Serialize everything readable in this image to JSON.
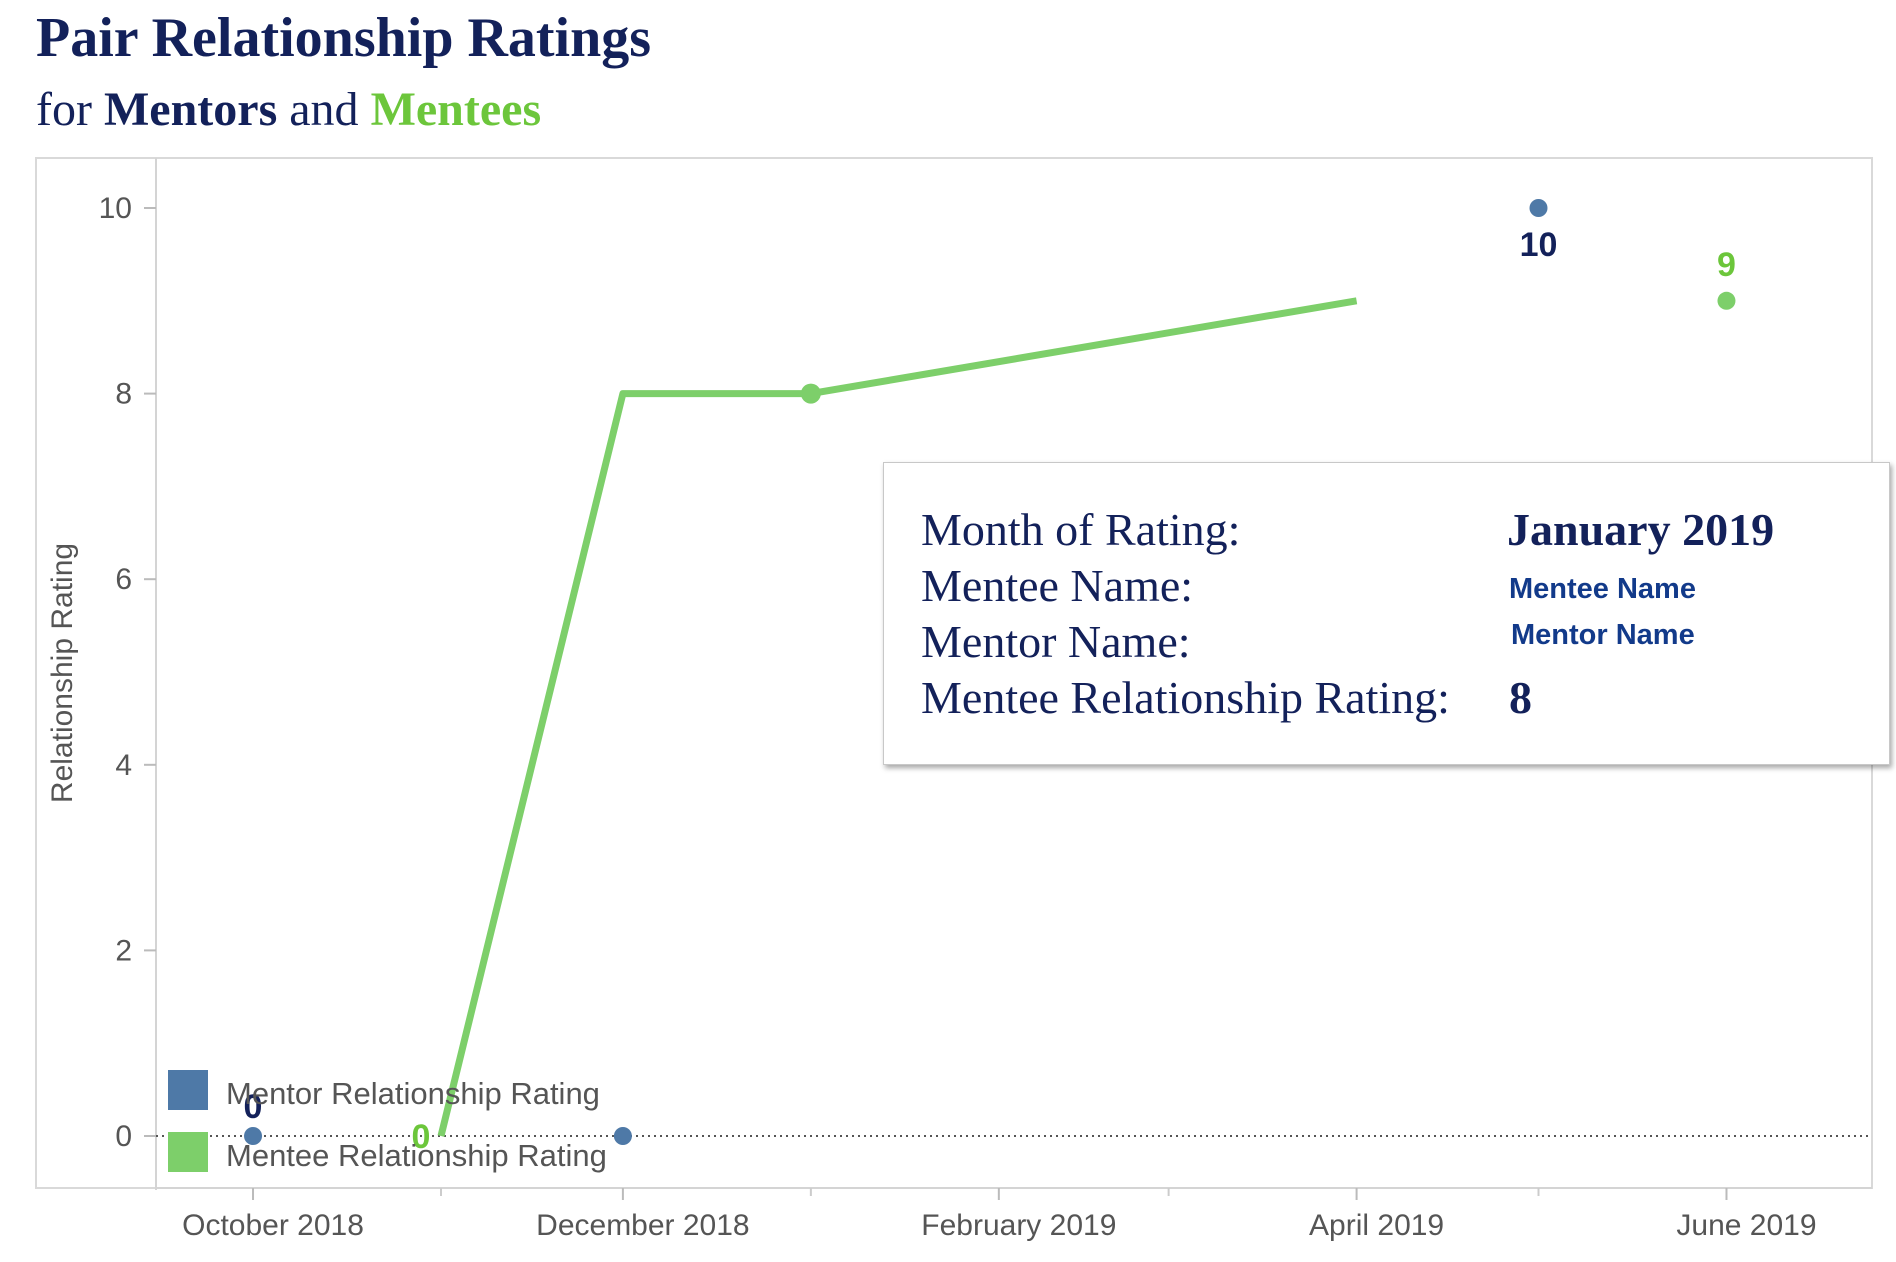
{
  "header": {
    "title": "Pair Relationship Ratings",
    "subtitle_for": "for",
    "subtitle_mentors": "Mentors",
    "subtitle_and": "and",
    "subtitle_mentees": "Mentees"
  },
  "colors": {
    "mentor": "#4e79a7",
    "mentor_label": "#13215a",
    "mentee": "#6cc63b",
    "mentee_line": "#7dcf6a",
    "title": "#13215a"
  },
  "chart_data": {
    "type": "line",
    "ylabel": "Relationship Rating",
    "xlabel": "",
    "ylim": [
      0,
      10
    ],
    "yticks": [
      0,
      2,
      4,
      6,
      8,
      10
    ],
    "xlim": [
      "2018-09-15",
      "2019-06-25"
    ],
    "xticks": [
      {
        "date": "2018-10-01",
        "label": "October 2018"
      },
      {
        "date": "2018-12-01",
        "label": "December 2018"
      },
      {
        "date": "2019-02-01",
        "label": "February 2019"
      },
      {
        "date": "2019-04-01",
        "label": "April 2019"
      },
      {
        "date": "2019-06-01",
        "label": "June 2019"
      }
    ],
    "minor_xticks": [
      "2018-11-01",
      "2019-01-01",
      "2019-03-01",
      "2019-05-01"
    ],
    "series": [
      {
        "name": "Mentor Relationship Rating",
        "style": "points",
        "points": [
          {
            "x": "2018-10-01",
            "y": 0,
            "label": "0"
          },
          {
            "x": "2018-12-01",
            "y": 0
          },
          {
            "x": "2019-05-01",
            "y": 10,
            "label": "10"
          }
        ]
      },
      {
        "name": "Mentee Relationship Rating",
        "style": "line",
        "points": [
          {
            "x": "2018-11-01",
            "y": 0,
            "label": "0"
          },
          {
            "x": "2018-12-01",
            "y": 8
          },
          {
            "x": "2019-01-01",
            "y": 8
          },
          {
            "x": "2019-04-01",
            "y": 9
          }
        ],
        "extra_points": [
          {
            "x": "2019-06-01",
            "y": 9,
            "label": "9"
          }
        ]
      }
    ],
    "legend": {
      "placement": "bottom-left",
      "items": [
        "Mentor Relationship Rating",
        "Mentee Relationship Rating"
      ]
    }
  },
  "tooltip": {
    "month_label": "Month of Rating:",
    "month_value": "January 2019",
    "mentee_label": "Mentee Name:",
    "mentee_value": "Mentee Name",
    "mentor_label": "Mentor Name:",
    "mentor_value": "Mentor Name",
    "rating_label": "Mentee Relationship Rating:",
    "rating_value": "8"
  }
}
